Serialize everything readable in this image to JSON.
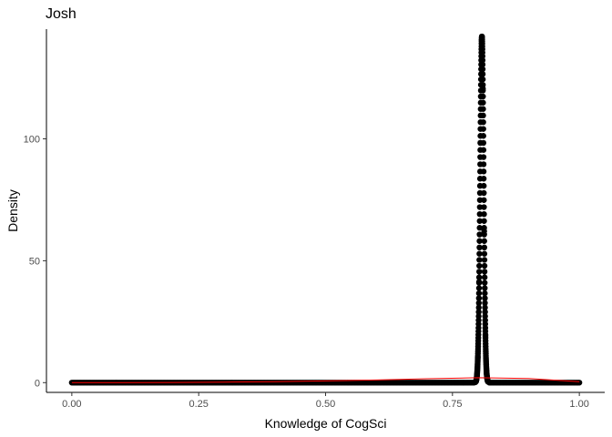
{
  "chart_data": {
    "type": "scatter",
    "title": "Josh",
    "xlabel": "Knowledge of CogSci",
    "ylabel": "Density",
    "xlim": [
      -0.05,
      1.05
    ],
    "ylim": [
      -4,
      145
    ],
    "x_ticks": [
      0,
      0.25,
      0.5,
      0.75,
      1
    ],
    "x_tick_labels": [
      "0.00",
      "0.25",
      "0.50",
      "0.75",
      "1.00"
    ],
    "y_ticks": [
      0,
      50,
      100
    ],
    "y_tick_labels": [
      "0",
      "50",
      "100"
    ],
    "grid": false,
    "legend": "none",
    "series": [
      {
        "kind": "points",
        "color": "#000000",
        "peak_x": 0.808,
        "peak_density": 142,
        "x_start": 0,
        "x_end": 1,
        "baseline_density": 0
      },
      {
        "kind": "line",
        "color": "#ff0000",
        "x": [
          0,
          0.1,
          0.2,
          0.3,
          0.4,
          0.5,
          0.6,
          0.7,
          0.8,
          0.9,
          1.0
        ],
        "y": [
          0,
          0.02,
          0.08,
          0.2,
          0.4,
          0.7,
          1.1,
          1.6,
          2.0,
          1.7,
          0.4
        ]
      }
    ]
  }
}
